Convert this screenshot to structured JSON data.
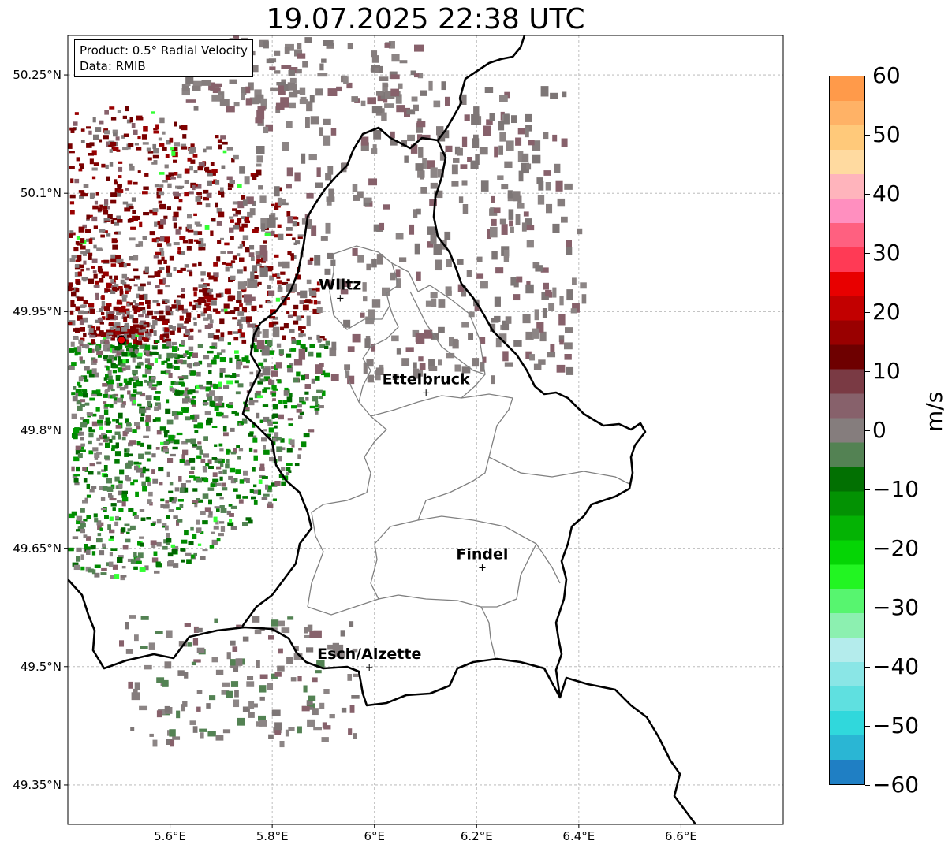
{
  "title": "19.07.2025 22:38 UTC",
  "info_box": {
    "product": "Product: 0.5° Radial Velocity",
    "data": "Data: RMIB"
  },
  "map": {
    "lon_range": [
      5.4,
      6.8
    ],
    "lat_range": [
      49.3,
      50.3
    ],
    "lon_ticks": [
      {
        "value": 5.6,
        "label": "5.6°E"
      },
      {
        "value": 5.8,
        "label": "5.8°E"
      },
      {
        "value": 6.0,
        "label": "6°E"
      },
      {
        "value": 6.2,
        "label": "6.2°E"
      },
      {
        "value": 6.4,
        "label": "6.4°E"
      },
      {
        "value": 6.6,
        "label": "6.6°E"
      }
    ],
    "lat_ticks": [
      {
        "value": 50.25,
        "label": "50.25°N"
      },
      {
        "value": 50.1,
        "label": "50.1°N"
      },
      {
        "value": 49.95,
        "label": "49.95°N"
      },
      {
        "value": 49.8,
        "label": "49.8°N"
      },
      {
        "value": 49.65,
        "label": "49.65°N"
      },
      {
        "value": 49.5,
        "label": "49.5°N"
      },
      {
        "value": 49.35,
        "label": "49.35°N"
      }
    ],
    "grid": true,
    "radar_site": {
      "lon": 5.505,
      "lat": 49.914
    },
    "cities": [
      {
        "name": "Wiltz",
        "lon": 5.933,
        "lat": 49.968
      },
      {
        "name": "Ettelbruck",
        "lon": 6.101,
        "lat": 49.848
      },
      {
        "name": "Findel",
        "lon": 6.211,
        "lat": 49.626
      },
      {
        "name": "Esch/Alzette",
        "lon": 5.99,
        "lat": 49.5
      }
    ]
  },
  "colorbar": {
    "unit": "m/s",
    "min": -60,
    "max": 60,
    "ticks": [
      {
        "value": 60,
        "label": "60"
      },
      {
        "value": 50,
        "label": "50"
      },
      {
        "value": 40,
        "label": "40"
      },
      {
        "value": 30,
        "label": "30"
      },
      {
        "value": 20,
        "label": "20"
      },
      {
        "value": 10,
        "label": "10"
      },
      {
        "value": 0,
        "label": "0"
      },
      {
        "value": -10,
        "label": "−10"
      },
      {
        "value": -20,
        "label": "−20"
      },
      {
        "value": -30,
        "label": "−30"
      },
      {
        "value": -40,
        "label": "−40"
      },
      {
        "value": -50,
        "label": "−50"
      },
      {
        "value": -60,
        "label": "−60"
      }
    ],
    "colors_bottom_to_top": [
      "#1f7fc4",
      "#2ab6d4",
      "#30d8dc",
      "#5fe0e0",
      "#8ae6e6",
      "#b4ecec",
      "#8cf0b0",
      "#57f56f",
      "#22f522",
      "#05d505",
      "#04b304",
      "#039203",
      "#027002",
      "#538253",
      "#857d7d",
      "#87616b",
      "#7a3a44",
      "#6e0000",
      "#990000",
      "#c20000",
      "#e80000",
      "#ff3a55",
      "#ff6080",
      "#ff8fbf",
      "#ffb4bc",
      "#ffdaa0",
      "#ffc97a",
      "#ffb266",
      "#ff9a4a"
    ]
  }
}
